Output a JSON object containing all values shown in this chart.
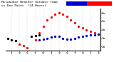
{
  "title": "Milwaukee Weather Outdoor Temperature vs Dew Point (24 Hours)",
  "legend_color_temp": "#ff0000",
  "legend_color_dew": "#0000cc",
  "legend_color_black": "#000000",
  "background_color": "#ffffff",
  "plot_bg": "#ffffff",
  "temp_x": [
    3,
    4,
    5,
    7,
    8,
    9,
    10,
    11,
    12,
    13,
    14,
    15,
    16,
    17,
    18,
    19,
    20,
    21,
    22,
    23
  ],
  "temp_y": [
    23,
    21,
    19,
    28,
    36,
    44,
    52,
    55,
    58,
    60,
    58,
    56,
    52,
    48,
    44,
    42,
    40,
    38,
    36,
    35
  ],
  "dew_x": [
    8,
    9,
    10,
    11,
    12,
    13,
    14,
    15,
    16,
    17,
    18,
    19,
    20,
    21,
    22,
    23
  ],
  "dew_y": [
    28,
    29,
    30,
    31,
    32,
    32,
    30,
    29,
    29,
    30,
    31,
    32,
    33,
    34,
    34,
    35
  ],
  "black_x": [
    0,
    1,
    2,
    6,
    7,
    8
  ],
  "black_y": [
    30,
    28,
    27,
    32,
    33,
    34
  ],
  "ylim": [
    15,
    65
  ],
  "xlim": [
    -0.5,
    23.5
  ],
  "ytick_vals": [
    20,
    30,
    40,
    50,
    60
  ],
  "ytick_labels": [
    "2o",
    "3o",
    "4o",
    "5o",
    "6o"
  ],
  "xticks": [
    1,
    3,
    5,
    7,
    9,
    11,
    13,
    15,
    17,
    19,
    21,
    23
  ],
  "xtick_labels": [
    "1",
    "3",
    "5",
    "7",
    "9",
    "1",
    "3",
    "5",
    "7",
    "9",
    "1",
    "3"
  ],
  "grid_x": [
    1,
    3,
    5,
    7,
    9,
    11,
    13,
    15,
    17,
    19,
    21,
    23
  ],
  "grid_color": "#aaaaaa",
  "tick_fontsize": 3.2,
  "marker_size": 1.8
}
